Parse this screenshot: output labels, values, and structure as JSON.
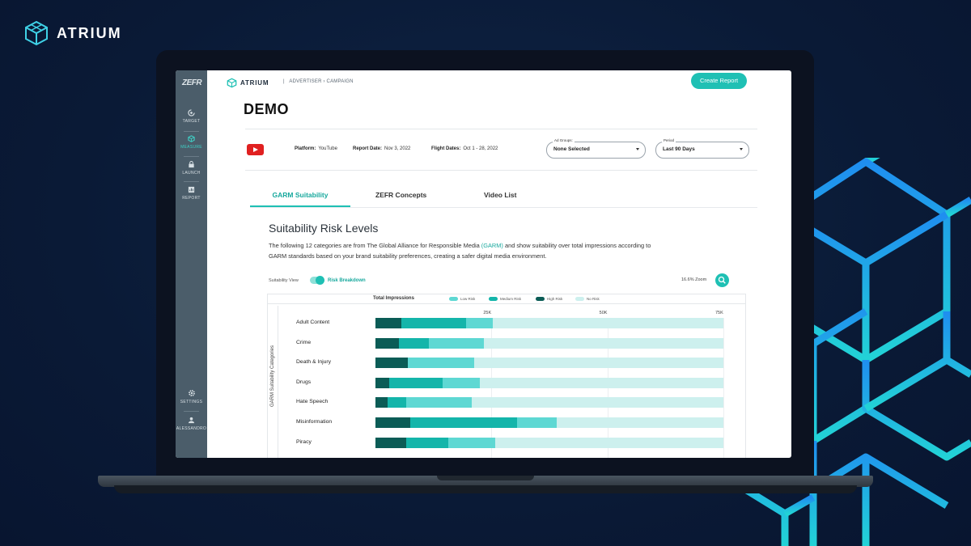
{
  "brand": {
    "name": "ATRIUM"
  },
  "colors": {
    "accent": "#1fc0b4",
    "high_risk": "#0b5c56",
    "medium_risk": "#14b5aa",
    "low_risk": "#5ed8d3",
    "no_risk": "#cdf0ee",
    "sidebar": "#4b5d6a"
  },
  "sidebar": {
    "logo": "ZEFR",
    "items": [
      {
        "label": "TARGET",
        "icon": "target-icon"
      },
      {
        "label": "MEASURE",
        "icon": "measure-icon",
        "active": true
      },
      {
        "label": "LAUNCH",
        "icon": "lock-icon"
      },
      {
        "label": "REPORT",
        "icon": "report-icon"
      }
    ],
    "bottom": [
      {
        "label": "SETTINGS",
        "icon": "gear-icon"
      },
      {
        "label": "ALESSANDRO",
        "icon": "user-icon"
      }
    ]
  },
  "topbar": {
    "logo": "ATRIUM",
    "separator": "|",
    "breadcrumb": "ADVERTISER › CAMPAIGN",
    "create_button": "Create Report"
  },
  "page": {
    "title": "DEMO",
    "platform_label": "Platform:",
    "platform_value": "YouTube",
    "report_date_label": "Report Date:",
    "report_date_value": "Nov 3, 2022",
    "flight_dates_label": "Flight Dates:",
    "flight_dates_value": "Oct 1 - 28, 2022",
    "ad_groups": {
      "label": "Ad Groups:",
      "value": "None Selected"
    },
    "period": {
      "label": "Period",
      "value": "Last 90 Days"
    }
  },
  "tabs": [
    {
      "label": "GARM Suitability",
      "active": true
    },
    {
      "label": "ZEFR Concepts"
    },
    {
      "label": "Video List"
    }
  ],
  "section": {
    "title": "Suitability Risk Levels",
    "desc_part1": "The following 12 categories are from The Global Alliance for Responsible Media",
    "desc_link": "(GARM)",
    "desc_part2": "and show suitability over total impressions according to GARM standards based on your brand suitability preferences, creating a safer digital media environment.",
    "view_label": "Suitability View",
    "toggle_label": "Risk Breakdown",
    "zoom_label": "16.6% Zoom"
  },
  "chart_data": {
    "type": "bar",
    "orientation": "horizontal",
    "stacked": true,
    "title": "Total Impressions",
    "ylabel": "GARM Suitability Categories",
    "xlim": [
      0,
      75000
    ],
    "x_ticks": [
      "25K",
      "50K",
      "75K"
    ],
    "legend": [
      "Low Risk",
      "Medium Risk",
      "High Risk",
      "No Risk"
    ],
    "categories": [
      "Adult Content",
      "Crime",
      "Death & Injury",
      "Drugs",
      "Hate Speech",
      "Misinformation",
      "Piracy"
    ],
    "series": [
      {
        "name": "High Risk",
        "values": [
          5500,
          5000,
          7000,
          3000,
          2700,
          7500,
          6700
        ]
      },
      {
        "name": "Medium Risk",
        "values": [
          14000,
          6500,
          0,
          11500,
          4000,
          23000,
          9000
        ]
      },
      {
        "name": "Low Risk",
        "values": [
          5800,
          11800,
          14300,
          8000,
          14000,
          8500,
          10200
        ]
      },
      {
        "name": "No Risk",
        "values": [
          49700,
          51700,
          53700,
          52500,
          54300,
          36000,
          49100
        ]
      }
    ]
  }
}
